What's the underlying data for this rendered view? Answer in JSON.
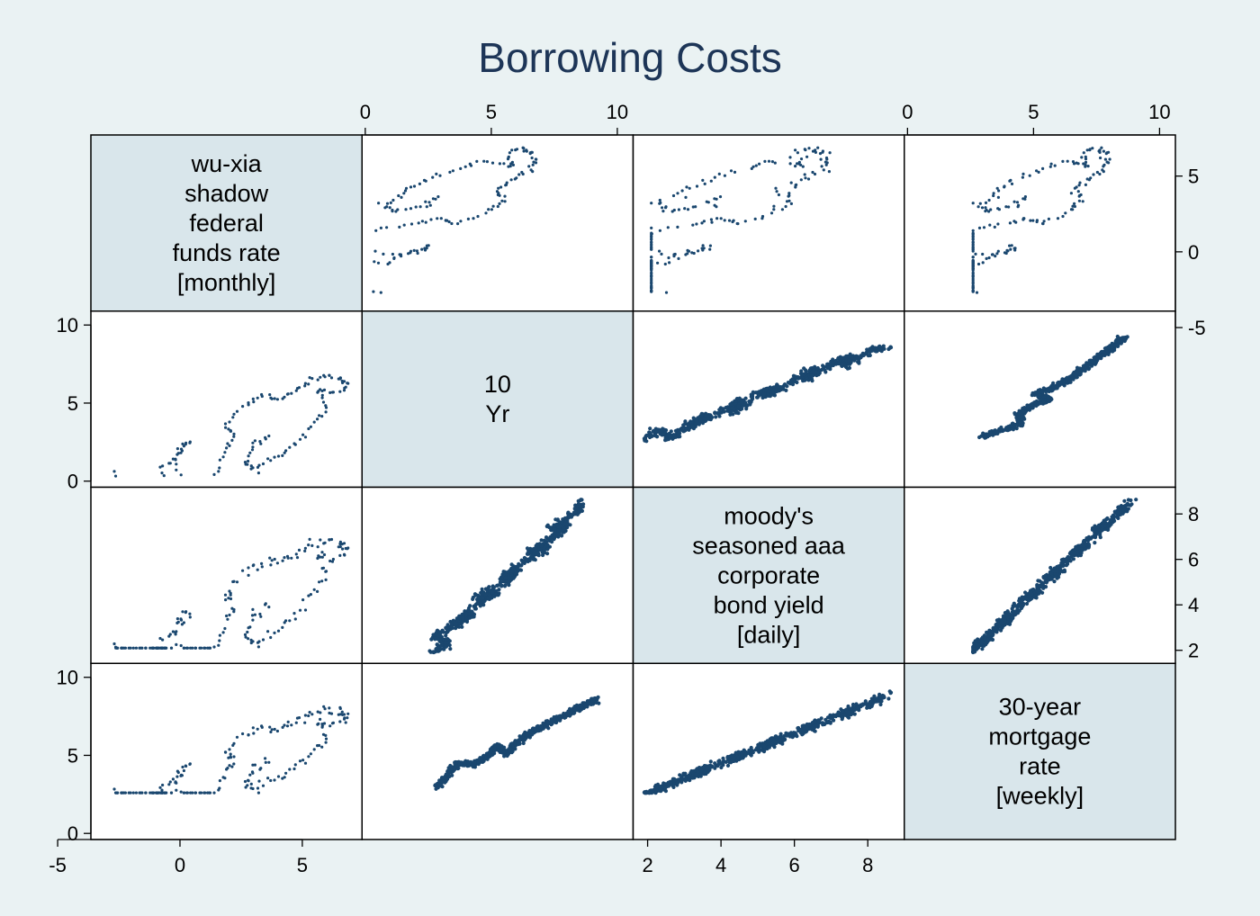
{
  "chart_data": {
    "type": "scatter",
    "subtype": "scatter-matrix",
    "title": "Borrowing Costs",
    "marker_color": "#1a476f",
    "diagonal_fill": "#d9e6eb",
    "background": "#eaf2f3",
    "variables": [
      {
        "id": "wuxia",
        "label_lines": [
          "wu-xia",
          "shadow",
          "federal",
          "funds rate",
          "[monthly]"
        ],
        "range": [
          -3.2,
          7.0
        ],
        "ticks": [
          "-5",
          "0",
          "5"
        ],
        "tick_values": [
          -5,
          0,
          5
        ],
        "axes": [
          "bottom",
          "right"
        ]
      },
      {
        "id": "tenyr",
        "label_lines": [
          "10",
          "Yr"
        ],
        "range": [
          0.3,
          10.2
        ],
        "ticks": [
          "0",
          "5",
          "10"
        ],
        "tick_values": [
          0,
          5,
          10
        ],
        "axes": [
          "top",
          "left"
        ]
      },
      {
        "id": "aaa",
        "label_lines": [
          "moody's",
          "seasoned aaa",
          "corporate",
          "bond yield",
          "[daily]"
        ],
        "range": [
          1.9,
          8.7
        ],
        "ticks": [
          "2",
          "4",
          "6",
          "8"
        ],
        "tick_values": [
          2,
          4,
          6,
          8
        ],
        "axes": [
          "bottom",
          "right"
        ]
      },
      {
        "id": "mortgage",
        "label_lines": [
          "30-year",
          "mortgage",
          "rate",
          "[weekly]"
        ],
        "range": [
          0.3,
          10.2
        ],
        "ticks": [
          "0",
          "5",
          "10"
        ],
        "tick_values": [
          0,
          5,
          10
        ],
        "axes": [
          "top",
          "left"
        ]
      }
    ],
    "series": [
      {
        "variable": "wuxia",
        "frequency": "monthly",
        "path": [
          [
            -2.9,
            0.2
          ],
          [
            -2.7,
            -1.2
          ],
          [
            -2.2,
            -1.5
          ],
          [
            -1.6,
            -1.1
          ],
          [
            -1.2,
            -1.6
          ],
          [
            -0.9,
            -2.6
          ],
          [
            -1.3,
            -1.9
          ],
          [
            -0.6,
            -0.7
          ],
          [
            -1.0,
            0.4
          ],
          [
            -0.3,
            1.5
          ],
          [
            0.2,
            2.4
          ],
          [
            -0.4,
            1.1
          ],
          [
            0.0,
            -0.7
          ],
          [
            0.5,
            -1.5
          ],
          [
            1.1,
            -0.3
          ],
          [
            1.6,
            1.4
          ],
          [
            2.1,
            2.6
          ],
          [
            1.6,
            3.1
          ],
          [
            2.4,
            4.6
          ],
          [
            3.1,
            5.2
          ],
          [
            3.9,
            5.0
          ],
          [
            4.6,
            5.5
          ],
          [
            5.2,
            6.3
          ],
          [
            5.9,
            6.5
          ],
          [
            6.4,
            6.2
          ],
          [
            6.8,
            6.0
          ],
          [
            6.1,
            5.3
          ],
          [
            5.4,
            5.6
          ],
          [
            5.8,
            4.3
          ],
          [
            5.2,
            3.2
          ],
          [
            4.4,
            1.9
          ],
          [
            3.6,
            1.2
          ],
          [
            2.9,
            0.4
          ],
          [
            2.5,
            0.9
          ],
          [
            2.8,
            2.1
          ],
          [
            3.5,
            2.6
          ]
        ]
      },
      {
        "variable": "tenyr",
        "frequency": "daily",
        "path": [
          [
            0.6,
            1.2
          ],
          [
            0.8,
            1.6
          ],
          [
            1.4,
            2.4
          ],
          [
            1.9,
            2.7
          ],
          [
            2.3,
            3.3
          ],
          [
            2.6,
            2.7
          ],
          [
            3.1,
            3.6
          ],
          [
            3.6,
            4.2
          ],
          [
            3.2,
            3.5
          ],
          [
            4.1,
            4.6
          ],
          [
            4.6,
            5.2
          ],
          [
            4.3,
            4.4
          ],
          [
            5.0,
            5.6
          ],
          [
            5.6,
            6.1
          ],
          [
            5.2,
            5.4
          ],
          [
            6.1,
            6.6
          ],
          [
            6.6,
            7.2
          ],
          [
            6.3,
            6.5
          ],
          [
            7.1,
            7.6
          ],
          [
            7.6,
            8.0
          ],
          [
            7.3,
            7.3
          ],
          [
            8.1,
            8.4
          ],
          [
            8.5,
            8.6
          ]
        ]
      },
      {
        "variable": "mortgage",
        "frequency": "weekly",
        "path": [
          [
            2.8,
            3.0
          ],
          [
            3.3,
            3.8
          ],
          [
            3.7,
            4.5
          ],
          [
            4.2,
            4.4
          ],
          [
            4.8,
            4.9
          ],
          [
            5.3,
            5.6
          ],
          [
            5.6,
            5.1
          ],
          [
            6.2,
            6.0
          ],
          [
            6.7,
            6.6
          ],
          [
            7.1,
            6.9
          ],
          [
            7.7,
            7.4
          ],
          [
            8.3,
            7.9
          ],
          [
            8.6,
            8.1
          ],
          [
            9.2,
            8.6
          ]
        ]
      }
    ]
  }
}
